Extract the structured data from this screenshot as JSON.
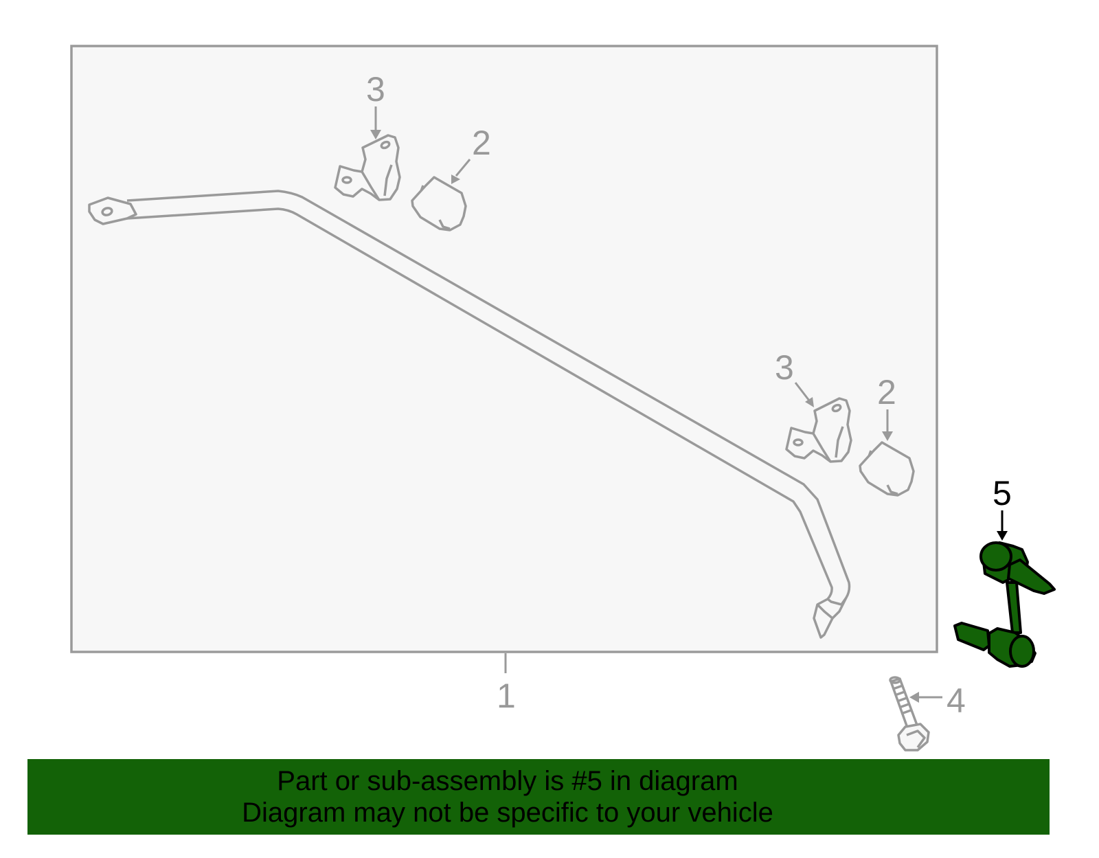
{
  "diagram": {
    "callouts": {
      "part1": "1",
      "part2_upper": "2",
      "part2_lower": "2",
      "part3_upper": "3",
      "part3_lower": "3",
      "part4": "4",
      "part5": "5"
    },
    "highlighted_part": "5",
    "colors": {
      "highlight": "#136207",
      "outline": "#9a9a9a",
      "box_fill": "#f7f7f7",
      "banner": "#136207"
    }
  },
  "banner": {
    "line1": "Part or sub-assembly is #5 in diagram",
    "line2": "Diagram may not be specific to your vehicle"
  }
}
